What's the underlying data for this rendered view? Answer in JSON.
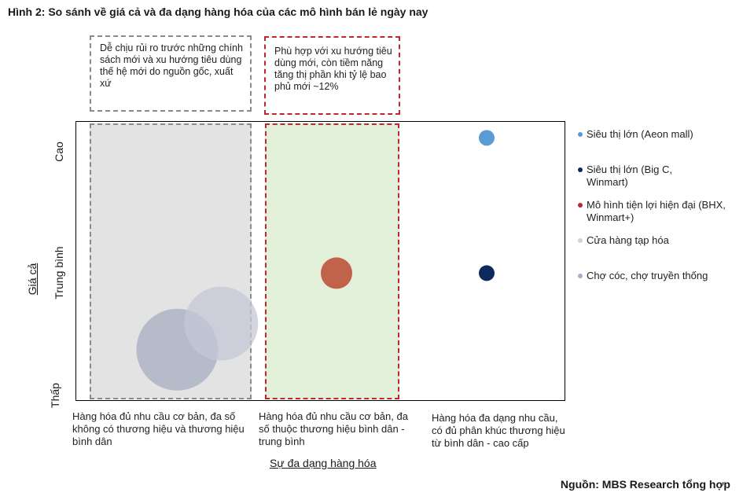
{
  "title": "Hình 2: So sánh về giá cả và đa dạng hàng hóa của các mô hình bán lẻ ngày nay",
  "source": "Nguồn: MBS Research tổng hợp",
  "callouts": [
    {
      "text": "Dễ chịu rủi ro trước những chính sách mới và xu hướng tiêu dùng thế hệ mới do nguồn gốc, xuất xứ",
      "style": "grey"
    },
    {
      "text": "Phù hợp với xu hướng tiêu dùng mới, còn tiềm năng tăng thị phần khi tỷ lệ bao phủ mới ~12%",
      "style": "red"
    }
  ],
  "chart_data": {
    "type": "scatter",
    "title": "Hình 2: So sánh về giá cả và đa dạng hàng hóa của các mô hình bán lẻ ngày nay",
    "xlabel": "Sự đa dạng hàng hóa",
    "ylabel": "Giá cả",
    "x_categories": [
      "Hàng hóa đủ nhu cầu cơ bản, đa số không có thương hiệu và thương hiệu bình dân",
      "Hàng hóa đủ nhu cầu cơ bản, đa số thuộc thương hiệu bình dân - trung bình",
      "Hàng hóa đa dạng nhu cầu, có đủ phân khúc thương hiệu từ bình dân - cao cấp"
    ],
    "y_categories": [
      "Thấp",
      "Trung bình",
      "Cao"
    ],
    "xlim": [
      0,
      3
    ],
    "ylim": [
      0,
      3
    ],
    "legend_position": "right",
    "series": [
      {
        "name": "Siêu thị lớn (Aeon mall)",
        "color": "#5b9bd5",
        "x": 2.5,
        "y": 2.82,
        "size": 1
      },
      {
        "name": "Siêu thị lớn (Big C, Winmart)",
        "color": "#0d2a5c",
        "x": 2.5,
        "y": 1.37,
        "size": 1
      },
      {
        "name": "Mô hình tiện lợi hiện đại (BHX, Winmart+)",
        "color": "#c0282d",
        "bubble_color": "#c0634a",
        "x": 1.5,
        "y": 1.37,
        "size": 2
      },
      {
        "name": "Cửa hàng tạp hóa",
        "color": "#cfd2de",
        "bubble_color": "#c4c7d5",
        "x": 0.75,
        "y": 0.83,
        "size": 4.7
      },
      {
        "name": "Chợ cóc, chợ truyền thống",
        "color": "#a7adc2",
        "bubble_color": "#a7adc2",
        "x": 0.5,
        "y": 0.55,
        "size": 5.2
      }
    ],
    "zones": [
      {
        "category": 0,
        "fill": "#e3e3e3",
        "border": "#8a8a8a"
      },
      {
        "category": 1,
        "fill": "#e2efd9",
        "border": "#c0282d"
      }
    ]
  }
}
